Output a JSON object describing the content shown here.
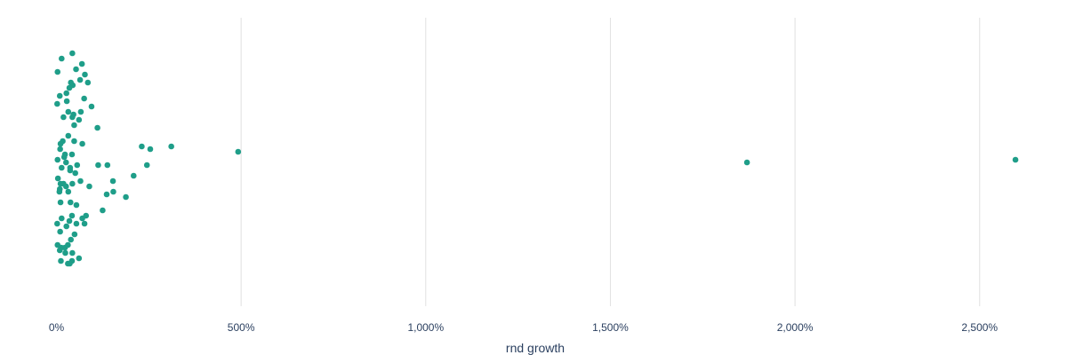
{
  "chart_data": {
    "type": "scatter",
    "title": "",
    "xlabel": "rnd growth",
    "ylabel": "",
    "xlim": [
      0,
      2650
    ],
    "x_tick_values": [
      0,
      500,
      1000,
      1500,
      2000,
      2500
    ],
    "x_tick_labels": [
      "0%",
      "500%",
      "1,000%",
      "1,500%",
      "2,000%",
      "2,500%"
    ],
    "grid": true,
    "legend": "none",
    "marker_color": "#1f9e89",
    "grid_color": "#e0e0e0",
    "text_color": "#2a3f5f",
    "series": [
      {
        "x": [
          43,
          14,
          69,
          53,
          3,
          77,
          64,
          39,
          85,
          44,
          35,
          9,
          75,
          27,
          28,
          95,
          2,
          66,
          43,
          46,
          32,
          48,
          19,
          61,
          10,
          11,
          111,
          32,
          48,
          17,
          70,
          231,
          254,
          311,
          23,
          492,
          42,
          21,
          3,
          1870,
          2597,
          56,
          138,
          113,
          245,
          26,
          14,
          37,
          37,
          209,
          51,
          4,
          11,
          153,
          65,
          43,
          26,
          9,
          19,
          89,
          32,
          8,
          136,
          154,
          11,
          188,
          38,
          54,
          125,
          42,
          80,
          70,
          14,
          35,
          54,
          2,
          27,
          76,
          10,
          49,
          39,
          3,
          13,
          31,
          23,
          9,
          43,
          24,
          61,
          12,
          42,
          36,
          31
        ],
        "y": [
          0.9,
          0.88,
          0.86,
          0.84,
          0.83,
          0.82,
          0.8,
          0.79,
          0.79,
          0.78,
          0.77,
          0.74,
          0.73,
          0.75,
          0.72,
          0.7,
          0.71,
          0.68,
          0.66,
          0.67,
          0.68,
          0.63,
          0.66,
          0.65,
          0.54,
          0.56,
          0.62,
          0.59,
          0.57,
          0.57,
          0.56,
          0.55,
          0.54,
          0.55,
          0.52,
          0.53,
          0.52,
          0.51,
          0.5,
          0.49,
          0.5,
          0.48,
          0.48,
          0.48,
          0.48,
          0.49,
          0.47,
          0.47,
          0.46,
          0.44,
          0.45,
          0.43,
          0.41,
          0.42,
          0.42,
          0.41,
          0.4,
          0.39,
          0.41,
          0.4,
          0.38,
          0.38,
          0.37,
          0.38,
          0.34,
          0.36,
          0.34,
          0.33,
          0.31,
          0.29,
          0.29,
          0.28,
          0.28,
          0.27,
          0.26,
          0.26,
          0.25,
          0.26,
          0.23,
          0.22,
          0.2,
          0.18,
          0.17,
          0.18,
          0.17,
          0.16,
          0.15,
          0.15,
          0.13,
          0.12,
          0.12,
          0.11,
          0.11
        ]
      }
    ]
  }
}
